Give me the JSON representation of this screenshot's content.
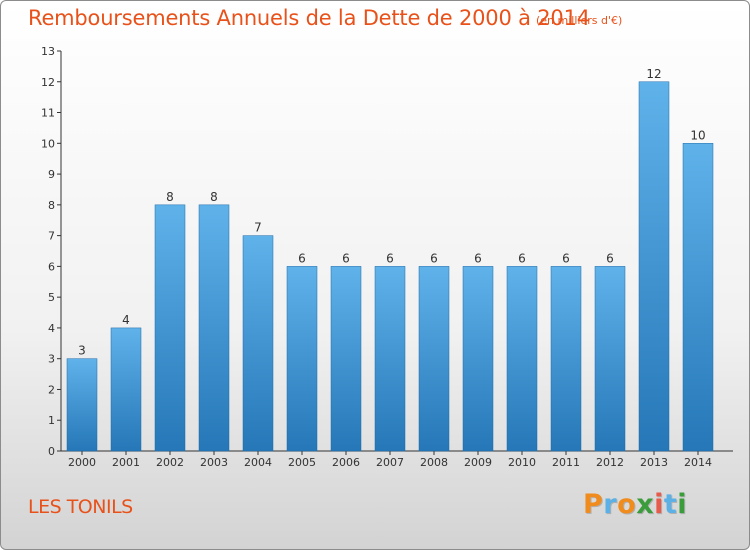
{
  "title": "Remboursements Annuels de la Dette de 2000 à 2014",
  "subtitle": "(en milliers d'€)",
  "commune": "LES TONILS",
  "logo": {
    "letters": [
      "P",
      "r",
      "o",
      "x",
      "i",
      "t",
      "i"
    ],
    "colors": [
      "#f08c1e",
      "#5bb0e6",
      "#f08c1e",
      "#3a9c3a",
      "#e85a4a",
      "#5bb0e6",
      "#3a9c3a"
    ]
  },
  "colors": {
    "bar_top": "#5fb2ea",
    "bar_bottom": "#2577b7",
    "axis": "#333333",
    "grid": "#9c9c9c",
    "title": "#e8521a"
  },
  "chart_data": {
    "type": "bar",
    "title": "Remboursements Annuels de la Dette de 2000 à 2014",
    "subtitle": "(en milliers d'€)",
    "xlabel": "",
    "ylabel": "",
    "categories": [
      "2000",
      "2001",
      "2002",
      "2003",
      "2004",
      "2005",
      "2006",
      "2007",
      "2008",
      "2009",
      "2010",
      "2011",
      "2012",
      "2013",
      "2014"
    ],
    "values": [
      3,
      4,
      8,
      8,
      7,
      6,
      6,
      6,
      6,
      6,
      6,
      6,
      6,
      12,
      10
    ],
    "ylim": [
      0,
      13
    ],
    "yticks": [
      0,
      1,
      2,
      3,
      4,
      5,
      6,
      7,
      8,
      9,
      10,
      11,
      12,
      13
    ],
    "grid": false,
    "legend": "none"
  }
}
